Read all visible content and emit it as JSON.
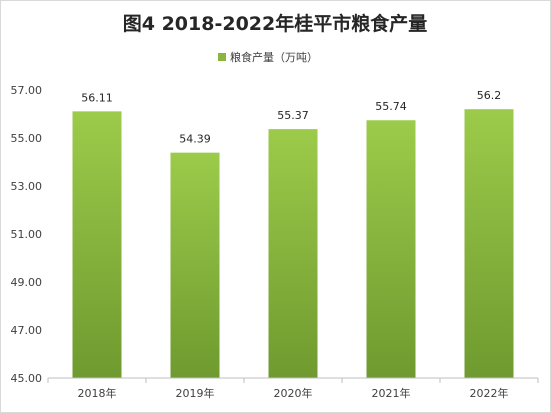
{
  "chart_data": {
    "type": "bar",
    "title": "图4 2018-2022年桂平市粮食产量",
    "legend": {
      "position": "top",
      "entries": [
        "粮食产量（万吨）"
      ]
    },
    "categories": [
      "2018年",
      "2019年",
      "2020年",
      "2021年",
      "2022年"
    ],
    "series": [
      {
        "name": "粮食产量（万吨）",
        "values": [
          56.11,
          54.39,
          55.37,
          55.74,
          56.2
        ],
        "value_labels": [
          "56.11",
          "54.39",
          "55.37",
          "55.74",
          "56.2"
        ]
      }
    ],
    "ylim": [
      45,
      57
    ],
    "yticks": [
      "45.00",
      "47.00",
      "49.00",
      "51.00",
      "53.00",
      "55.00",
      "57.00"
    ],
    "ytick_values": [
      45,
      47,
      49,
      51,
      53,
      55,
      57
    ],
    "grid": false,
    "colors": {
      "bar_top": "#9ccb4a",
      "bar_bottom": "#6f9a2f",
      "axis": "#bfbfbf"
    }
  }
}
